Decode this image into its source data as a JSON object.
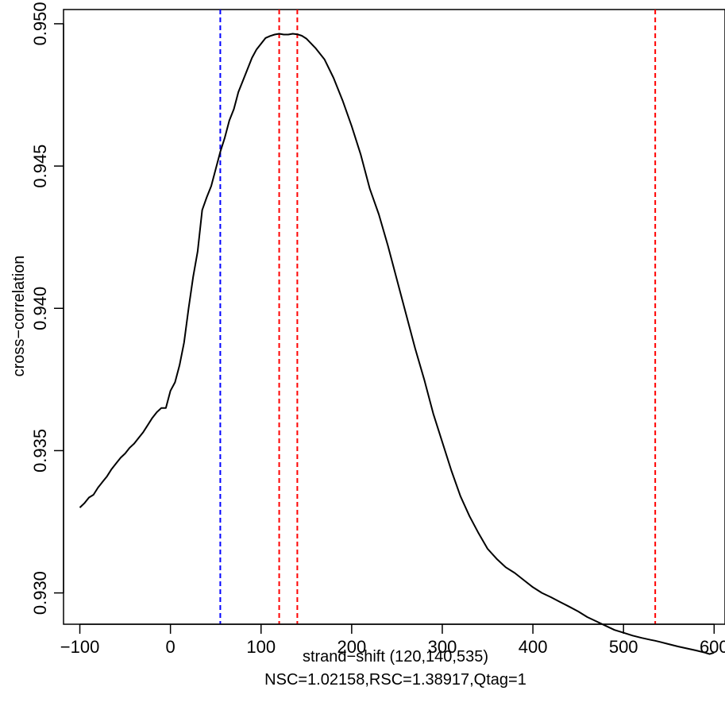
{
  "chart_data": {
    "type": "line",
    "title": "",
    "xlabel": "strand−shift (120,140,535)",
    "subtitle": "NSC=1.02158,RSC=1.38917,Qtag=1",
    "ylabel": "cross−correlation",
    "xlim": [
      -118,
      612
    ],
    "ylim": [
      0.9289,
      0.9505
    ],
    "x_ticks": [
      -100,
      0,
      100,
      200,
      300,
      400,
      500,
      600
    ],
    "x_tick_labels": [
      "−100",
      "0",
      "100",
      "200",
      "300",
      "400",
      "500",
      "600"
    ],
    "y_ticks": [
      0.93,
      0.935,
      0.94,
      0.945,
      0.95
    ],
    "y_tick_labels": [
      "0.930",
      "0.935",
      "0.940",
      "0.945",
      "0.950"
    ],
    "grid": false,
    "series": [
      {
        "color": "#000000",
        "x": [
          -100,
          -95,
          -90,
          -85,
          -80,
          -75,
          -70,
          -65,
          -60,
          -55,
          -50,
          -45,
          -40,
          -35,
          -30,
          -25,
          -20,
          -15,
          -10,
          -5,
          0,
          5,
          10,
          15,
          20,
          25,
          30,
          35,
          40,
          45,
          50,
          55,
          60,
          65,
          70,
          75,
          80,
          85,
          90,
          95,
          100,
          105,
          110,
          115,
          120,
          125,
          130,
          135,
          140,
          145,
          150,
          160,
          170,
          180,
          190,
          200,
          210,
          220,
          230,
          240,
          250,
          260,
          270,
          280,
          290,
          300,
          310,
          320,
          330,
          340,
          350,
          360,
          370,
          380,
          390,
          400,
          410,
          420,
          430,
          440,
          450,
          460,
          470,
          480,
          490,
          500,
          510,
          520,
          530,
          535,
          540,
          550,
          560,
          570,
          580,
          590,
          595,
          600
        ],
        "values": [
          0.933,
          0.93315,
          0.93335,
          0.93345,
          0.9337,
          0.9339,
          0.9341,
          0.93435,
          0.93455,
          0.93475,
          0.9349,
          0.9351,
          0.93525,
          0.93545,
          0.93565,
          0.9359,
          0.93615,
          0.93635,
          0.9365,
          0.9365,
          0.9371,
          0.9374,
          0.938,
          0.9388,
          0.94,
          0.9411,
          0.942,
          0.94345,
          0.9439,
          0.9443,
          0.9449,
          0.9455,
          0.946,
          0.9466,
          0.947,
          0.9476,
          0.948,
          0.9484,
          0.9488,
          0.9491,
          0.9493,
          0.9495,
          0.94957,
          0.94962,
          0.94965,
          0.94962,
          0.94962,
          0.94965,
          0.94963,
          0.94958,
          0.94948,
          0.94915,
          0.94875,
          0.9481,
          0.9473,
          0.9464,
          0.9454,
          0.9442,
          0.9433,
          0.9422,
          0.941,
          0.9398,
          0.9386,
          0.9375,
          0.9363,
          0.9353,
          0.9343,
          0.9334,
          0.9327,
          0.9321,
          0.93155,
          0.9312,
          0.9309,
          0.9307,
          0.93045,
          0.9302,
          0.93,
          0.92985,
          0.92968,
          0.92952,
          0.92935,
          0.92915,
          0.929,
          0.92885,
          0.9287,
          0.9286,
          0.9285,
          0.92842,
          0.92835,
          0.92832,
          0.92828,
          0.9282,
          0.92812,
          0.92805,
          0.92798,
          0.9279,
          0.92785,
          0.9279
        ]
      }
    ],
    "vlines": [
      {
        "x": 55,
        "color": "#0000ff"
      },
      {
        "x": 120,
        "color": "#ff0000"
      },
      {
        "x": 140,
        "color": "#ff0000"
      },
      {
        "x": 535,
        "color": "#ff0000"
      }
    ]
  }
}
